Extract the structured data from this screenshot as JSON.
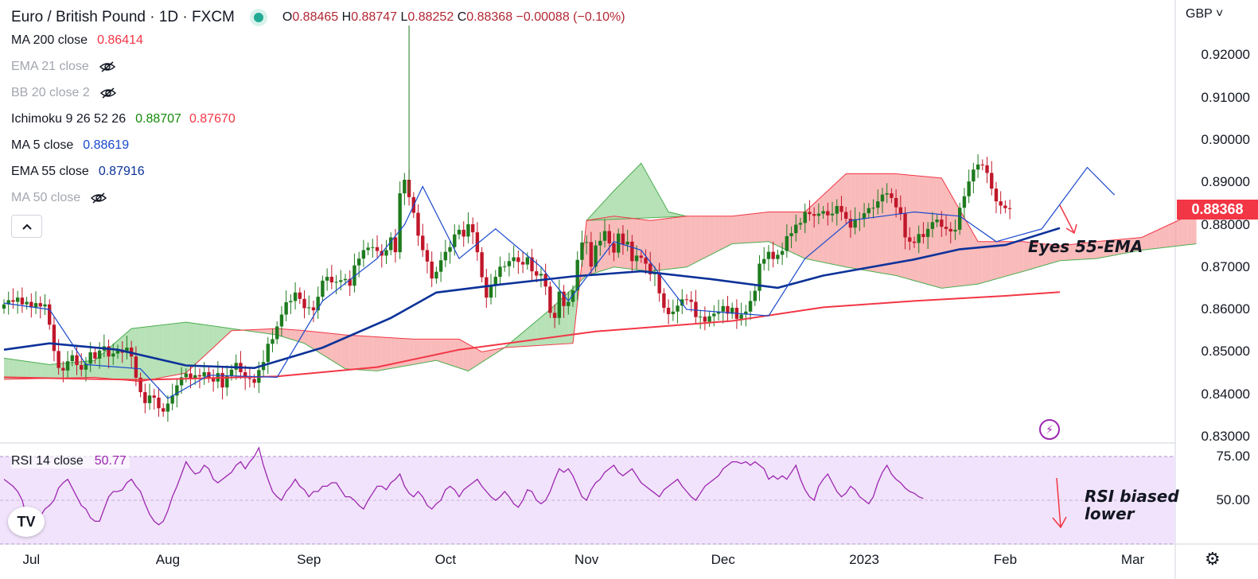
{
  "header": {
    "symbol_title": "Euro / British Pound · 1D · FXCM",
    "ohlc": {
      "o_label": "O",
      "o": "0.88465",
      "h_label": "H",
      "h": "0.88747",
      "l_label": "L",
      "l": "0.88252",
      "c_label": "C",
      "c": "0.88368",
      "change": "−0.00088 (−0.10%)"
    }
  },
  "indicators": [
    {
      "name": "MA 200 close",
      "values": [
        "0.86414"
      ],
      "colors": [
        "#f23645"
      ],
      "hidden": false
    },
    {
      "name": "EMA 21 close",
      "values": [],
      "colors": [],
      "hidden": true
    },
    {
      "name": "BB 20 close 2",
      "values": [],
      "colors": [],
      "hidden": true
    },
    {
      "name": "Ichimoku 9 26 52 26",
      "values": [
        "0.88707",
        "0.87670"
      ],
      "colors": [
        "#138a07",
        "#f23645"
      ],
      "hidden": false
    },
    {
      "name": "MA 5 close",
      "values": [
        "0.88619"
      ],
      "colors": [
        "#1848cc"
      ],
      "hidden": false
    },
    {
      "name": "EMA 55 close",
      "values": [
        "0.87916"
      ],
      "colors": [
        "#0c3299"
      ],
      "hidden": false
    },
    {
      "name": "MA 50 close",
      "values": [],
      "colors": [],
      "hidden": true
    }
  ],
  "rsi_legend": {
    "name": "RSI 14 close",
    "value": "50.77"
  },
  "axis": {
    "currency": "GBP",
    "price_ticks": [
      "0.92000",
      "0.91000",
      "0.90000",
      "0.89000",
      "0.88000",
      "0.87000",
      "0.86000",
      "0.85000",
      "0.84000",
      "0.83000"
    ],
    "current_price": "0.88368",
    "rsi_ticks": [
      "75.00",
      "50.00"
    ],
    "time_ticks": [
      "Jul",
      "Aug",
      "Sep",
      "Oct",
      "Nov",
      "Dec",
      "2023",
      "Feb",
      "Mar"
    ]
  },
  "annotations": {
    "ema": "Eyes 55-EMA",
    "rsi_line1": "RSI biased",
    "rsi_line2": "lower"
  },
  "icons": {
    "collapse": "chevron-up-icon",
    "hidden": "eye-crossed-icon",
    "logo": "tradingview-logo",
    "alert": "lightning-icon",
    "settings": "gear-icon"
  },
  "chart_data": {
    "type": "candlestick",
    "title": "Euro / British Pound · 1D · FXCM",
    "ylim": [
      0.83,
      0.925
    ],
    "rsi_ylim": [
      25,
      85
    ],
    "colors": {
      "up": "#1e7b1e",
      "down": "#c0172a",
      "ma200": "#f23645",
      "ema55": "#0c3299",
      "ma5": "#1848cc",
      "cloud_bull": "#9fd79f",
      "cloud_bear": "#f7a3a3",
      "rsi": "#9c27b0"
    },
    "months": [
      {
        "label": "Jul",
        "day": 6
      },
      {
        "label": "Aug",
        "day": 36
      },
      {
        "label": "Sep",
        "day": 67
      },
      {
        "label": "Oct",
        "day": 97
      },
      {
        "label": "Nov",
        "day": 128
      },
      {
        "label": "Dec",
        "day": 158
      },
      {
        "label": "2023",
        "day": 189
      },
      {
        "label": "Feb",
        "day": 220
      },
      {
        "label": "Mar",
        "day": 248
      }
    ],
    "candle_closes": [
      0.8612,
      0.8622,
      0.8618,
      0.8628,
      0.8612,
      0.8618,
      0.8605,
      0.8615,
      0.8607,
      0.8612,
      0.8564,
      0.8502,
      0.8462,
      0.8456,
      0.8478,
      0.8492,
      0.8469,
      0.8458,
      0.8472,
      0.8499,
      0.8484,
      0.8503,
      0.8513,
      0.8489,
      0.8496,
      0.8505,
      0.8498,
      0.851,
      0.8489,
      0.8439,
      0.8405,
      0.8379,
      0.8397,
      0.8392,
      0.8367,
      0.8359,
      0.8378,
      0.8397,
      0.8421,
      0.844,
      0.8449,
      0.8438,
      0.8445,
      0.8442,
      0.8452,
      0.8439,
      0.843,
      0.845,
      0.8416,
      0.8444,
      0.8458,
      0.8474,
      0.8452,
      0.8438,
      0.8436,
      0.8427,
      0.8457,
      0.8476,
      0.8519,
      0.853,
      0.856,
      0.8588,
      0.8617,
      0.862,
      0.864,
      0.8625,
      0.8603,
      0.8605,
      0.8598,
      0.863,
      0.8668,
      0.8677,
      0.8664,
      0.8665,
      0.8669,
      0.8672,
      0.8656,
      0.8704,
      0.872,
      0.874,
      0.8746,
      0.8747,
      0.8738,
      0.8727,
      0.874,
      0.877,
      0.8735,
      0.8874,
      0.8906,
      0.8865,
      0.8828,
      0.8774,
      0.874,
      0.8713,
      0.8673,
      0.8689,
      0.8716,
      0.8736,
      0.8747,
      0.8777,
      0.8788,
      0.8772,
      0.8801,
      0.8782,
      0.8735,
      0.8676,
      0.8628,
      0.8656,
      0.8677,
      0.8701,
      0.8702,
      0.8714,
      0.8723,
      0.8712,
      0.8706,
      0.8723,
      0.869,
      0.868,
      0.8684,
      0.8654,
      0.8592,
      0.858,
      0.8642,
      0.8608,
      0.8618,
      0.8645,
      0.8717,
      0.8758,
      0.8759,
      0.8701,
      0.8751,
      0.8762,
      0.8785,
      0.8756,
      0.8734,
      0.8779,
      0.8753,
      0.876,
      0.8714,
      0.8727,
      0.8722,
      0.8708,
      0.8683,
      0.8686,
      0.8638,
      0.8604,
      0.8589,
      0.8595,
      0.8609,
      0.8624,
      0.8623,
      0.8618,
      0.8582,
      0.8583,
      0.8571,
      0.8584,
      0.859,
      0.8595,
      0.8608,
      0.859,
      0.8604,
      0.8578,
      0.8588,
      0.8595,
      0.862,
      0.8644,
      0.8708,
      0.8719,
      0.8736,
      0.8719,
      0.8729,
      0.8738,
      0.8773,
      0.878,
      0.88,
      0.8804,
      0.883,
      0.8825,
      0.8821,
      0.8826,
      0.8832,
      0.8822,
      0.8826,
      0.8844,
      0.883,
      0.8814,
      0.8793,
      0.8813,
      0.8814,
      0.8827,
      0.8839,
      0.884,
      0.8855,
      0.8871,
      0.8874,
      0.8863,
      0.8841,
      0.8826,
      0.877,
      0.876,
      0.8757,
      0.8778,
      0.8771,
      0.879,
      0.8806,
      0.8812,
      0.8795,
      0.879,
      0.8784,
      0.8788,
      0.884,
      0.8867,
      0.8902,
      0.893,
      0.8942,
      0.894,
      0.8922,
      0.8885,
      0.8855,
      0.8845,
      0.8839,
      0.8837
    ],
    "ma200": [
      [
        0,
        0.844
      ],
      [
        30,
        0.8434
      ],
      [
        60,
        0.8442
      ],
      [
        82,
        0.8464
      ],
      [
        100,
        0.8505
      ],
      [
        130,
        0.8548
      ],
      [
        160,
        0.8573
      ],
      [
        180,
        0.8605
      ],
      [
        200,
        0.862
      ],
      [
        220,
        0.8632
      ],
      [
        232,
        0.8641
      ]
    ],
    "ema55": [
      [
        0,
        0.8505
      ],
      [
        10,
        0.852
      ],
      [
        25,
        0.8505
      ],
      [
        40,
        0.8468
      ],
      [
        55,
        0.8462
      ],
      [
        70,
        0.851
      ],
      [
        85,
        0.858
      ],
      [
        95,
        0.864
      ],
      [
        110,
        0.866
      ],
      [
        125,
        0.8678
      ],
      [
        140,
        0.869
      ],
      [
        155,
        0.8672
      ],
      [
        170,
        0.8651
      ],
      [
        180,
        0.868
      ],
      [
        200,
        0.8718
      ],
      [
        210,
        0.8742
      ],
      [
        220,
        0.8752
      ],
      [
        232,
        0.8792
      ]
    ],
    "ma5": [
      [
        0,
        0.8615
      ],
      [
        10,
        0.86
      ],
      [
        18,
        0.847
      ],
      [
        30,
        0.846
      ],
      [
        36,
        0.839
      ],
      [
        45,
        0.8445
      ],
      [
        60,
        0.844
      ],
      [
        70,
        0.862
      ],
      [
        82,
        0.872
      ],
      [
        88,
        0.88
      ],
      [
        92,
        0.889
      ],
      [
        100,
        0.872
      ],
      [
        108,
        0.879
      ],
      [
        118,
        0.87
      ],
      [
        124,
        0.862
      ],
      [
        134,
        0.876
      ],
      [
        140,
        0.874
      ],
      [
        150,
        0.86
      ],
      [
        168,
        0.8585
      ],
      [
        176,
        0.872
      ],
      [
        186,
        0.881
      ],
      [
        200,
        0.883
      ],
      [
        210,
        0.882
      ],
      [
        218,
        0.876
      ],
      [
        228,
        0.879
      ],
      [
        238,
        0.8935
      ],
      [
        244,
        0.887
      ]
    ],
    "cloud_senkou_a": [
      [
        0,
        0.8485
      ],
      [
        10,
        0.847
      ],
      [
        20,
        0.848
      ],
      [
        28,
        0.8555
      ],
      [
        40,
        0.857
      ],
      [
        50,
        0.8555
      ],
      [
        60,
        0.854
      ],
      [
        66,
        0.852
      ],
      [
        75,
        0.846
      ],
      [
        82,
        0.8455
      ],
      [
        95,
        0.848
      ],
      [
        102,
        0.8455
      ],
      [
        110,
        0.851
      ],
      [
        120,
        0.86
      ],
      [
        128,
        0.868
      ],
      [
        134,
        0.87
      ],
      [
        142,
        0.869
      ],
      [
        150,
        0.87
      ],
      [
        160,
        0.8755
      ],
      [
        168,
        0.876
      ],
      [
        176,
        0.872
      ],
      [
        185,
        0.87
      ],
      [
        196,
        0.868
      ],
      [
        206,
        0.865
      ],
      [
        214,
        0.866
      ],
      [
        224,
        0.869
      ],
      [
        232,
        0.8715
      ],
      [
        240,
        0.872
      ],
      [
        250,
        0.874
      ],
      [
        262,
        0.8755
      ]
    ],
    "cloud_senkou_b": [
      [
        0,
        0.8435
      ],
      [
        20,
        0.844
      ],
      [
        30,
        0.843
      ],
      [
        40,
        0.845
      ],
      [
        50,
        0.855
      ],
      [
        60,
        0.8555
      ],
      [
        66,
        0.855
      ],
      [
        75,
        0.854
      ],
      [
        90,
        0.853
      ],
      [
        100,
        0.853
      ],
      [
        105,
        0.85
      ],
      [
        110,
        0.851
      ],
      [
        125,
        0.852
      ],
      [
        128,
        0.881
      ],
      [
        134,
        0.882
      ],
      [
        142,
        0.881
      ],
      [
        150,
        0.882
      ],
      [
        160,
        0.882
      ],
      [
        168,
        0.883
      ],
      [
        176,
        0.883
      ],
      [
        185,
        0.892
      ],
      [
        196,
        0.892
      ],
      [
        206,
        0.891
      ],
      [
        214,
        0.876
      ],
      [
        224,
        0.876
      ],
      [
        232,
        0.875
      ],
      [
        240,
        0.876
      ],
      [
        250,
        0.877
      ],
      [
        262,
        0.883
      ]
    ],
    "cloud_bull_peak": [
      [
        128,
        0.881
      ],
      [
        134,
        0.888
      ],
      [
        140,
        0.8945
      ],
      [
        146,
        0.883
      ],
      [
        150,
        0.882
      ]
    ],
    "rsi": [
      62,
      60,
      58,
      55,
      50,
      40,
      40,
      42,
      41,
      45,
      47,
      50,
      57,
      60,
      62,
      57,
      52,
      47,
      45,
      40,
      38,
      38,
      45,
      52,
      55,
      55,
      56,
      60,
      62,
      58,
      55,
      48,
      42,
      38,
      36,
      38,
      44,
      52,
      58,
      65,
      72,
      68,
      65,
      66,
      70,
      68,
      62,
      60,
      62,
      64,
      66,
      70,
      72,
      68,
      72,
      75,
      80,
      70,
      62,
      55,
      52,
      50,
      55,
      58,
      62,
      58,
      56,
      52,
      55,
      55,
      58,
      58,
      60,
      60,
      56,
      52,
      52,
      50,
      47,
      45,
      50,
      54,
      58,
      58,
      56,
      60,
      62,
      65,
      58,
      54,
      52,
      55,
      52,
      47,
      45,
      48,
      50,
      56,
      58,
      56,
      52,
      56,
      58,
      60,
      62,
      58,
      55,
      52,
      50,
      52,
      55,
      52,
      48,
      46,
      50,
      56,
      55,
      50,
      48,
      50,
      55,
      62,
      68,
      66,
      68,
      64,
      58,
      52,
      50,
      56,
      60,
      62,
      66,
      68,
      70,
      66,
      64,
      66,
      68,
      64,
      60,
      58,
      56,
      54,
      52,
      56,
      58,
      60,
      62,
      58,
      55,
      52,
      50,
      54,
      58,
      60,
      62,
      64,
      68,
      70,
      72,
      72,
      71,
      72,
      70,
      72,
      70,
      68,
      62,
      64,
      62,
      64,
      62,
      66,
      70,
      62,
      56,
      52,
      50,
      58,
      62,
      65,
      60,
      55,
      52,
      54,
      58,
      56,
      52,
      50,
      48,
      52,
      60,
      66,
      70,
      65,
      62,
      60,
      57,
      55,
      54,
      52,
      51
    ]
  }
}
